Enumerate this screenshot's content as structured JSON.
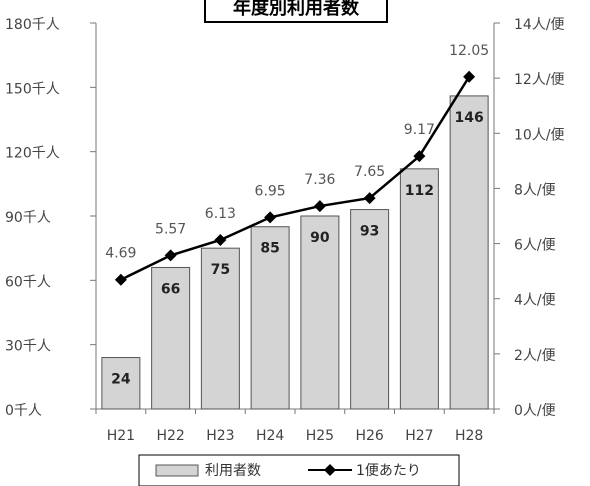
{
  "chart_data": {
    "type": "bar",
    "title": "年度別利用者数",
    "categories": [
      "H21",
      "H22",
      "H23",
      "H24",
      "H25",
      "H26",
      "H27",
      "H28"
    ],
    "series": [
      {
        "name": "利用者数",
        "type": "bar",
        "axis": "left",
        "values": [
          24,
          66,
          75,
          85,
          90,
          93,
          112,
          146
        ],
        "labels": [
          "24",
          "66",
          "75",
          "85",
          "90",
          "93",
          "112",
          "146"
        ],
        "color": "#d4d4d4"
      },
      {
        "name": "1便あたり",
        "type": "line",
        "axis": "right",
        "values": [
          4.69,
          5.57,
          6.13,
          6.95,
          7.36,
          7.65,
          9.17,
          12.05
        ],
        "labels": [
          "4.69",
          "5.57",
          "6.13",
          "6.95",
          "7.36",
          "7.65",
          "9.17",
          "12.05"
        ],
        "color": "#000000"
      }
    ],
    "y_left": {
      "min": 0,
      "max": 180,
      "ticks": [
        0,
        30,
        60,
        90,
        120,
        150,
        180
      ],
      "tick_labels": [
        "0千人",
        "30千人",
        "60千人",
        "90千人",
        "120千人",
        "150千人",
        "180千人"
      ]
    },
    "y_right": {
      "min": 0,
      "max": 14,
      "ticks": [
        0,
        2,
        4,
        6,
        8,
        10,
        12,
        14
      ],
      "tick_labels": [
        "0人/便",
        "2人/便",
        "4人/便",
        "6人/便",
        "8人/便",
        "10人/便",
        "12人/便",
        "14人/便"
      ]
    },
    "legend_position": "bottom",
    "grid": false
  }
}
